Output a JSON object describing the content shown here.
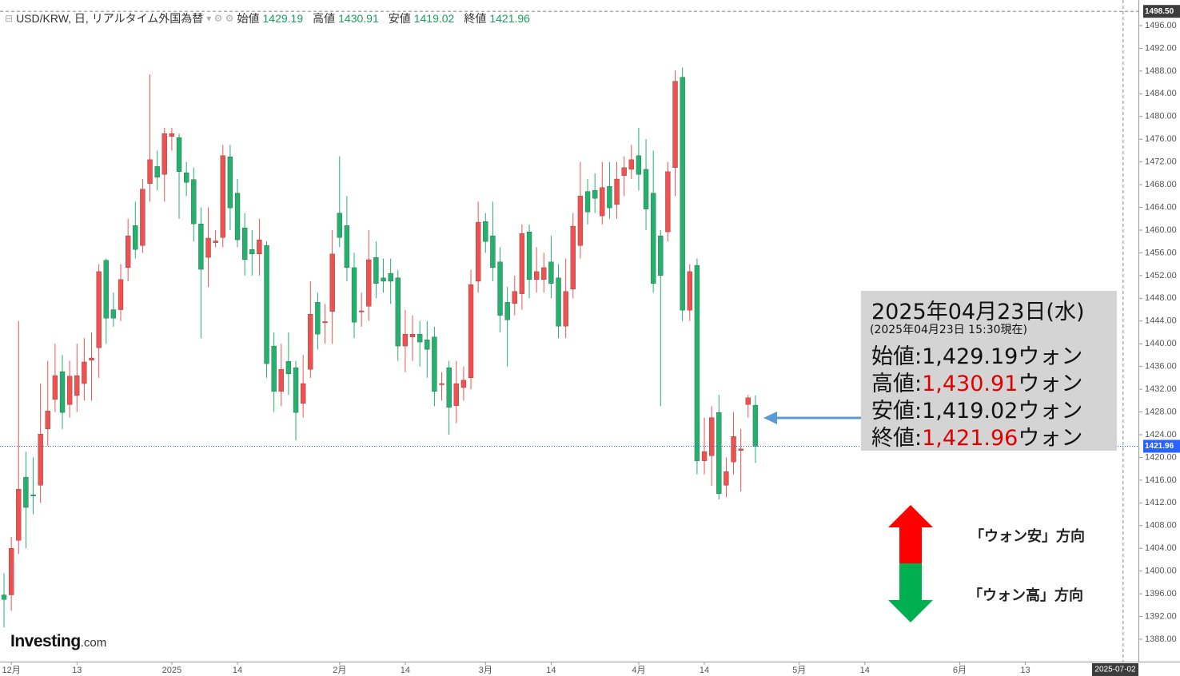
{
  "chart_data": {
    "type": "candlestick",
    "title": "USD/KRW, 日, リアルタイム外国為替",
    "ohlc_labels": [
      "始値",
      "高値",
      "安値",
      "終値"
    ],
    "up_color": "#f0514f",
    "down_color": "#22b26d",
    "open": [
      1395.8,
      1395.8,
      1405.4,
      1416.5,
      1413.4,
      1415.1,
      1425,
      1430.2,
      1435.1,
      1429.3,
      1430.9,
      1433,
      1437.1,
      1439.3,
      1454.7,
      1446,
      1446,
      1453.4,
      1460.8,
      1457.3,
      1468.2,
      1471.2,
      1469.8,
      1476.5,
      1476.3,
      1470.1,
      1468.9,
      1461.1,
      1455.2,
      1457.8,
      1458.7,
      1472.9,
      1466.5,
      1460.4,
      1456.6,
      1455.8,
      1457.3,
      1439.6,
      1431.6,
      1436.9,
      1435.8,
      1429.5,
      1435.5,
      1447.3,
      1443.7,
      1445.7,
      1463,
      1460.8,
      1453.4,
      1445.6,
      1446.6,
      1455.2,
      1451.6,
      1452.4,
      1451.6,
      1439.6,
      1441.2,
      1441.7,
      1440.7,
      1441.2,
      1432.8,
      1435.8,
      1429.1,
      1432.3,
      1434,
      1451,
      1461.5,
      1459,
      1454.4,
      1447.3,
      1447.1,
      1448.8,
      1459.7,
      1451.3,
      1451.3,
      1454.4,
      1451.6,
      1443.1,
      1449.6,
      1457.3,
      1466.8,
      1467,
      1462.5,
      1467.7,
      1464.5,
      1469.6,
      1470.7,
      1473.1,
      1470.7,
      1466.5,
      1459,
      1459.7,
      1471,
      1486.9,
      1445.9,
      1453.8,
      1419.4,
      1420.3,
      1427.9,
      1415.1,
      1419.2,
      1421.2,
      1429.3,
      1429.19
    ],
    "high": [
      1399.6,
      1406,
      1444,
      1421,
      1420,
      1433,
      1437,
      1440,
      1438,
      1437,
      1440,
      1441,
      1442,
      1454,
      1455,
      1449,
      1454,
      1462,
      1465,
      1469,
      1487.4,
      1474,
      1478,
      1478,
      1477,
      1472,
      1471,
      1464,
      1464,
      1460,
      1475,
      1475,
      1469,
      1463,
      1460,
      1462,
      1458,
      1442,
      1440,
      1442,
      1437,
      1438,
      1451,
      1449,
      1447,
      1460,
      1473,
      1466,
      1456,
      1449,
      1460,
      1458,
      1455,
      1455,
      1453,
      1446,
      1445,
      1444,
      1444,
      1443,
      1435,
      1437,
      1437,
      1436,
      1453,
      1465,
      1463,
      1465,
      1457,
      1450,
      1452,
      1461,
      1461,
      1457,
      1456,
      1459,
      1454,
      1455,
      1463,
      1472,
      1469,
      1470,
      1472,
      1472,
      1472,
      1473,
      1475,
      1478,
      1476,
      1474,
      1460,
      1472,
      1488.1,
      1488.6,
      1454,
      1455,
      1427,
      1429,
      1431,
      1420,
      1428,
      1425,
      1431,
      1430.91
    ],
    "low": [
      1390.1,
      1393,
      1403,
      1404,
      1410,
      1412,
      1422,
      1428,
      1425,
      1427,
      1428,
      1430,
      1430,
      1434,
      1440,
      1443,
      1444,
      1451,
      1455,
      1456,
      1465,
      1467,
      1465,
      1474,
      1462,
      1466,
      1458,
      1441,
      1450,
      1457,
      1457,
      1460,
      1457,
      1452,
      1452,
      1452,
      1434,
      1428,
      1429,
      1431,
      1423,
      1427,
      1434,
      1439,
      1440,
      1440,
      1457,
      1451,
      1441,
      1443,
      1444,
      1448,
      1449,
      1447,
      1437,
      1435,
      1437,
      1436,
      1434,
      1429,
      1430,
      1424,
      1426,
      1430,
      1432,
      1449,
      1456,
      1451,
      1442,
      1436,
      1445,
      1446,
      1448,
      1449,
      1449,
      1448,
      1441,
      1441,
      1448,
      1455,
      1461,
      1463,
      1461,
      1462,
      1462,
      1466,
      1469,
      1467,
      1460,
      1449,
      1429,
      1458,
      1466,
      1444,
      1444,
      1417,
      1417,
      1415,
      1412.6,
      1413,
      1417,
      1414,
      1427,
      1419.02
    ],
    "close": [
      1395,
      1404,
      1414.4,
      1411.2,
      1413.2,
      1424.1,
      1428.2,
      1434.4,
      1427.9,
      1434.3,
      1434.4,
      1436.8,
      1437.5,
      1452.7,
      1444.5,
      1444.5,
      1451.3,
      1459,
      1456.6,
      1467.2,
      1472.4,
      1469.3,
      1477,
      1477,
      1470.3,
      1468.4,
      1461.1,
      1453.1,
      1458.6,
      1458.1,
      1473.1,
      1463.9,
      1458.3,
      1454.8,
      1455.8,
      1458.3,
      1436.5,
      1431.6,
      1435.5,
      1434.7,
      1427.9,
      1433,
      1445.2,
      1441.7,
      1443.9,
      1455.8,
      1458.7,
      1453.4,
      1443.8,
      1445.8,
      1454.8,
      1450.6,
      1451,
      1451,
      1439.6,
      1441.7,
      1441.7,
      1440.3,
      1439,
      1431.6,
      1433,
      1428.8,
      1433,
      1433.6,
      1450.4,
      1461.4,
      1458,
      1453.4,
      1445,
      1444.2,
      1449.2,
      1459.4,
      1451.3,
      1452.7,
      1453.4,
      1450.6,
      1443.1,
      1449.2,
      1460.7,
      1466,
      1463.2,
      1465.6,
      1467.5,
      1463.9,
      1469,
      1471,
      1472.4,
      1469.8,
      1463.7,
      1450.6,
      1452,
      1470.3,
      1486.2,
      1445.9,
      1452.7,
      1419.4,
      1421,
      1427,
      1413.6,
      1417.5,
      1423.7,
      1421.5,
      1430.5,
      1421.96
    ],
    "xlim": [
      -0.55,
      155.5
    ],
    "xticks": [
      {
        "value": 1,
        "label": "12月"
      },
      {
        "value": 10,
        "label": "13"
      },
      {
        "value": 23,
        "label": "2025"
      },
      {
        "value": 32,
        "label": "14"
      },
      {
        "value": 46,
        "label": "2月"
      },
      {
        "value": 55,
        "label": "14"
      },
      {
        "value": 66,
        "label": "3月"
      },
      {
        "value": 75,
        "label": "14"
      },
      {
        "value": 87,
        "label": "4月"
      },
      {
        "value": 96,
        "label": "14"
      },
      {
        "value": 109,
        "label": "5月"
      },
      {
        "value": 118,
        "label": "14"
      },
      {
        "value": 131,
        "label": "6月"
      },
      {
        "value": 140,
        "label": "13"
      }
    ],
    "x_marker": {
      "value": 153.4,
      "label": "2025-07-02"
    },
    "ylim": [
      1384.06,
      1500.5
    ],
    "yticks": [
      {
        "value": 1388,
        "label": "1388.00"
      },
      {
        "value": 1392,
        "label": "1392.00"
      },
      {
        "value": 1396,
        "label": "1396.00"
      },
      {
        "value": 1400,
        "label": "1400.00"
      },
      {
        "value": 1404,
        "label": "1404.00"
      },
      {
        "value": 1408,
        "label": "1408.00"
      },
      {
        "value": 1412,
        "label": "1412.00"
      },
      {
        "value": 1416,
        "label": "1416.00"
      },
      {
        "value": 1420,
        "label": "1420.00"
      },
      {
        "value": 1424,
        "label": "1424.00"
      },
      {
        "value": 1428,
        "label": "1428.00"
      },
      {
        "value": 1432,
        "label": "1432.00"
      },
      {
        "value": 1436,
        "label": "1436.00"
      },
      {
        "value": 1440,
        "label": "1440.00"
      },
      {
        "value": 1444,
        "label": "1444.00"
      },
      {
        "value": 1448,
        "label": "1448.00"
      },
      {
        "value": 1452,
        "label": "1452.00"
      },
      {
        "value": 1456,
        "label": "1456.00"
      },
      {
        "value": 1460,
        "label": "1460.00"
      },
      {
        "value": 1464,
        "label": "1464.00"
      },
      {
        "value": 1468,
        "label": "1468.00"
      },
      {
        "value": 1472,
        "label": "1472.00"
      },
      {
        "value": 1476,
        "label": "1476.00"
      },
      {
        "value": 1480,
        "label": "1480.00"
      },
      {
        "value": 1484,
        "label": "1484.00"
      },
      {
        "value": 1488,
        "label": "1488.00"
      },
      {
        "value": 1492,
        "label": "1492.00"
      },
      {
        "value": 1496,
        "label": "1496.00"
      }
    ],
    "y_marker": {
      "value": 1498.5,
      "label": "1498.50"
    },
    "price_line_color": "#2962ff",
    "annotation": {
      "title": "2025年04月23日(水)",
      "subtitle": "(2025年04月23日 15:30現在)",
      "separator": ":",
      "rows": [
        {
          "label": "始値",
          "value": "1,429.19",
          "unit": "ウォン",
          "color": "#111111"
        },
        {
          "label": "高値",
          "value": "1,430.91",
          "unit": "ウォン",
          "color": "#e00000"
        },
        {
          "label": "安値",
          "value": "1,419.02",
          "unit": "ウォン",
          "color": "#111111"
        },
        {
          "label": "終値",
          "value": "1,421.96",
          "unit": "ウォン",
          "color": "#e00000"
        }
      ]
    },
    "direction_labels": {
      "up": "「ウォン安」方向",
      "down": "「ウォン高」方向"
    },
    "logo": {
      "brand": "Investing",
      "suffix": ".com"
    }
  }
}
